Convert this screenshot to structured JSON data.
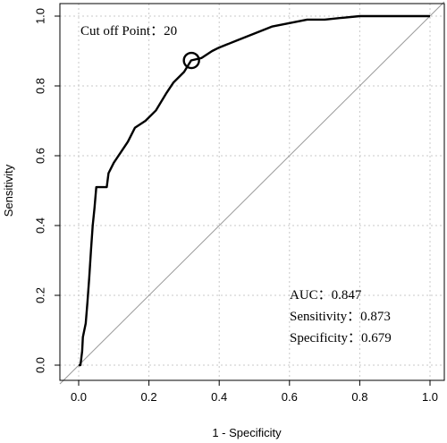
{
  "chart_data": {
    "type": "line",
    "xlabel": "1 - Specificity",
    "ylabel": "Sensitivity",
    "xlim": [
      0,
      1
    ],
    "ylim": [
      0,
      1
    ],
    "x_ticks": [
      0.0,
      0.2,
      0.4,
      0.6,
      0.8,
      1.0
    ],
    "y_ticks": [
      0.0,
      0.2,
      0.4,
      0.6,
      0.8,
      1.0
    ],
    "x_tick_labels": [
      "0.0",
      "0.2",
      "0.4",
      "0.6",
      "0.8",
      "1.0"
    ],
    "y_tick_labels": [
      "0.0",
      "0.2",
      "0.4",
      "0.6",
      "0.8",
      "1.0"
    ],
    "grid": true,
    "reference_line": {
      "x": [
        0,
        1
      ],
      "y": [
        0,
        1
      ],
      "color": "#999999"
    },
    "series": [
      {
        "color": "#000000",
        "x": [
          0.0,
          0.005,
          0.01,
          0.012,
          0.02,
          0.025,
          0.03,
          0.035,
          0.04,
          0.045,
          0.05,
          0.06,
          0.065,
          0.08,
          0.085,
          0.09,
          0.1,
          0.12,
          0.14,
          0.16,
          0.19,
          0.22,
          0.25,
          0.27,
          0.3,
          0.32,
          0.35,
          0.38,
          0.4,
          0.45,
          0.5,
          0.55,
          0.6,
          0.65,
          0.7,
          0.75,
          0.8,
          0.85,
          0.9,
          1.0
        ],
        "y": [
          0.0,
          0.0,
          0.04,
          0.08,
          0.12,
          0.18,
          0.25,
          0.33,
          0.4,
          0.45,
          0.51,
          0.51,
          0.51,
          0.51,
          0.55,
          0.56,
          0.58,
          0.61,
          0.64,
          0.68,
          0.7,
          0.73,
          0.78,
          0.81,
          0.84,
          0.873,
          0.88,
          0.9,
          0.91,
          0.93,
          0.95,
          0.97,
          0.98,
          0.99,
          0.99,
          0.995,
          1.0,
          1.0,
          1.0,
          1.0
        ]
      }
    ],
    "cutoff_marker": {
      "x": 0.321,
      "y": 0.873
    },
    "annotations": {
      "cutoff": "Cut off Point：20",
      "auc": "AUC：0.847",
      "sensitivity": "Sensitivity：0.873",
      "specificity": "Specificity：0.679"
    }
  }
}
